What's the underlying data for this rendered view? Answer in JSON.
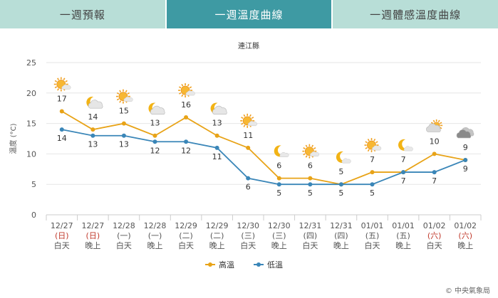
{
  "tabs": [
    {
      "label": "一週預報",
      "active": false
    },
    {
      "label": "一週溫度曲線",
      "active": true
    },
    {
      "label": "一週體感溫度曲線",
      "active": false
    }
  ],
  "colors": {
    "high": "#e8a317",
    "low": "#3a86b8",
    "grid": "#e6e6e6",
    "tab_active": "#3e9aa3",
    "tab_inactive": "#b8ded7",
    "weekend": "#c0392b"
  },
  "credit": "© 中央氣象局",
  "chart_data": {
    "type": "line",
    "title": "連江縣",
    "ylabel": "溫度 (°C)",
    "ylim": [
      0,
      25
    ],
    "yticks": [
      0,
      5,
      10,
      15,
      20,
      25
    ],
    "grid": true,
    "legend_position": "bottom-center",
    "categories": [
      {
        "date": "12/27",
        "day": "(日)",
        "period": "白天",
        "weekend": true,
        "icon": "sunny-icon"
      },
      {
        "date": "12/27",
        "day": "(日)",
        "period": "晚上",
        "weekend": true,
        "icon": "moon-cloud-icon"
      },
      {
        "date": "12/28",
        "day": "(一)",
        "period": "白天",
        "weekend": false,
        "icon": "sunny-icon"
      },
      {
        "date": "12/28",
        "day": "(一)",
        "period": "晚上",
        "weekend": false,
        "icon": "moon-cloud-icon"
      },
      {
        "date": "12/29",
        "day": "(二)",
        "period": "白天",
        "weekend": false,
        "icon": "sunny-icon"
      },
      {
        "date": "12/29",
        "day": "(二)",
        "period": "晚上",
        "weekend": false,
        "icon": "moon-cloud-icon"
      },
      {
        "date": "12/30",
        "day": "(三)",
        "period": "白天",
        "weekend": false,
        "icon": "sunny-icon"
      },
      {
        "date": "12/30",
        "day": "(三)",
        "period": "晚上",
        "weekend": false,
        "icon": "moon-icon"
      },
      {
        "date": "12/31",
        "day": "(四)",
        "period": "白天",
        "weekend": false,
        "icon": "sunny-icon"
      },
      {
        "date": "12/31",
        "day": "(四)",
        "period": "晚上",
        "weekend": false,
        "icon": "moon-icon"
      },
      {
        "date": "01/01",
        "day": "(五)",
        "period": "白天",
        "weekend": false,
        "icon": "sunny-icon"
      },
      {
        "date": "01/01",
        "day": "(五)",
        "period": "晚上",
        "weekend": false,
        "icon": "moon-icon"
      },
      {
        "date": "01/02",
        "day": "(六)",
        "period": "白天",
        "weekend": true,
        "icon": "sun-cloud-icon"
      },
      {
        "date": "01/02",
        "day": "(六)",
        "period": "晚上",
        "weekend": true,
        "icon": "cloudy-icon"
      }
    ],
    "series": [
      {
        "name": "高溫",
        "key": "high",
        "values": [
          17,
          14,
          15,
          13,
          16,
          13,
          11,
          6,
          6,
          5,
          7,
          7,
          10,
          9
        ]
      },
      {
        "name": "低溫",
        "key": "low",
        "values": [
          14,
          13,
          13,
          12,
          12,
          11,
          6,
          5,
          5,
          5,
          5,
          7,
          7,
          9
        ]
      }
    ]
  }
}
